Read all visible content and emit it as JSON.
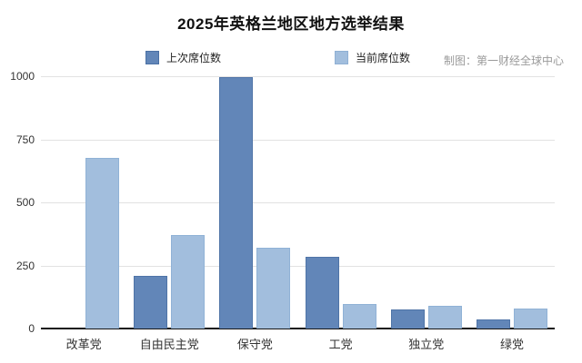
{
  "title": "2025年英格兰地区地方选举结果",
  "credit": "制图：第一财经全球中心",
  "legend": [
    {
      "label": "上次席位数",
      "color": "#6286b8"
    },
    {
      "label": "当前席位数",
      "color": "#a2bedd"
    }
  ],
  "colors": {
    "last_fill": "#6286b8",
    "last_border": "#4f74a7",
    "current_fill": "#a2bedd",
    "current_border": "#90b2d6",
    "gridline": "#e2e2e2",
    "axis": "#151515",
    "credit_text": "#9a9a9a"
  },
  "chart_data": {
    "type": "bar",
    "title": "2025年英格兰地区地方选举结果",
    "categories": [
      "改革党",
      "自由民主党",
      "保守党",
      "工党",
      "独立党",
      "绿党"
    ],
    "series": [
      {
        "name": "上次席位数",
        "values": [
          0,
          207,
          996,
          285,
          74,
          35
        ]
      },
      {
        "name": "当前席位数",
        "values": [
          677,
          370,
          319,
          98,
          89,
          79
        ]
      }
    ],
    "xlabel": "",
    "ylabel": "",
    "ylim": [
      0,
      1000
    ],
    "yticks": [
      0,
      250,
      500,
      750,
      1000
    ],
    "grid": true,
    "legend_position": "top-center",
    "credit_annotation": "制图：第一财经全球中心"
  }
}
